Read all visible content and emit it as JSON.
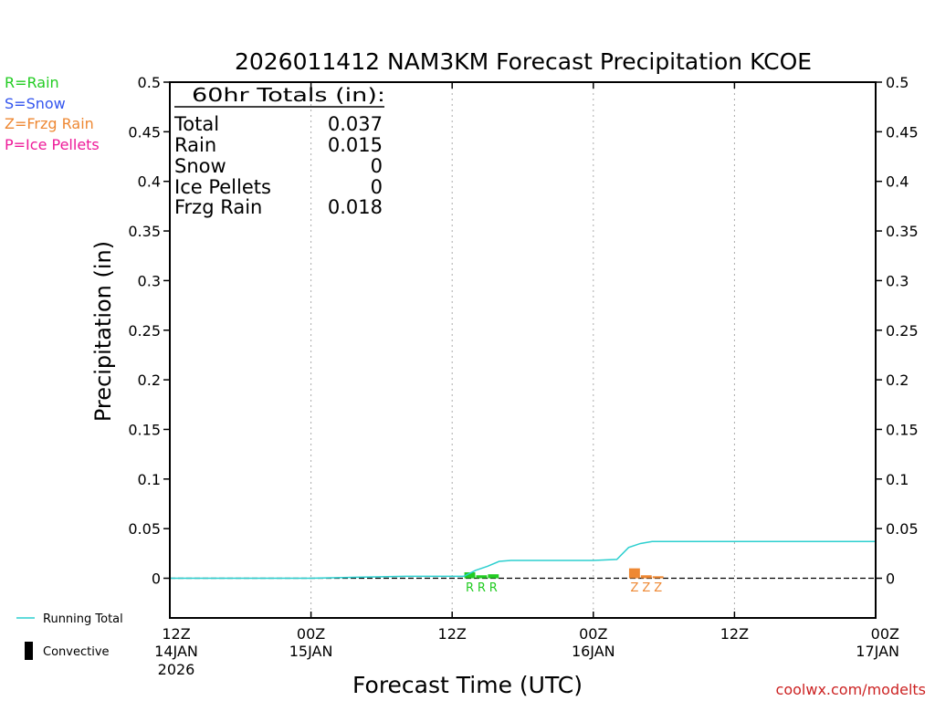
{
  "chart_data": {
    "type": "bar",
    "title": "2026011412 NAM3KM Forecast Precipitation KCOE",
    "xlabel": "Forecast Time (UTC)",
    "ylabel": "Precipitation (in)",
    "ylim": [
      -0.04,
      0.5
    ],
    "xlim_hours": [
      0,
      60
    ],
    "grid_vertical_dashed": true,
    "y_ticks": [
      {
        "value": 0.5,
        "label": "0.5"
      },
      {
        "value": 0.45,
        "label": "0.45"
      },
      {
        "value": 0.4,
        "label": "0.4"
      },
      {
        "value": 0.35,
        "label": "0.35"
      },
      {
        "value": 0.3,
        "label": "0.3"
      },
      {
        "value": 0.25,
        "label": "0.25"
      },
      {
        "value": 0.2,
        "label": "0.2"
      },
      {
        "value": 0.15,
        "label": "0.15"
      },
      {
        "value": 0.1,
        "label": "0.1"
      },
      {
        "value": 0.05,
        "label": "0.05"
      },
      {
        "value": 0,
        "label": "0"
      }
    ],
    "x_ticks": [
      {
        "hour": 0,
        "label": "12Z",
        "date": "14JAN",
        "year": "2026"
      },
      {
        "hour": 12,
        "label": "00Z",
        "date": "15JAN"
      },
      {
        "hour": 24,
        "label": "12Z"
      },
      {
        "hour": 36,
        "label": "00Z",
        "date": "16JAN"
      },
      {
        "hour": 48,
        "label": "12Z"
      },
      {
        "hour": 60,
        "label": "00Z",
        "date": "17JAN"
      }
    ],
    "precip_bars": [
      {
        "hour": 25.5,
        "value": 0.006,
        "ptype": "R"
      },
      {
        "hour": 26.5,
        "value": 0.003,
        "ptype": "R"
      },
      {
        "hour": 27.5,
        "value": 0.004,
        "ptype": "R"
      },
      {
        "hour": 39.5,
        "value": 0.01,
        "ptype": "Z"
      },
      {
        "hour": 40.5,
        "value": 0.003,
        "ptype": "Z"
      },
      {
        "hour": 41.5,
        "value": 0.002,
        "ptype": "Z"
      }
    ],
    "ptype_labels": [
      {
        "hour": 25.5,
        "text": "R",
        "ptype": "R"
      },
      {
        "hour": 26.5,
        "text": "R",
        "ptype": "R"
      },
      {
        "hour": 27.5,
        "text": "R",
        "ptype": "R"
      },
      {
        "hour": 39.5,
        "text": "Z",
        "ptype": "Z"
      },
      {
        "hour": 40.5,
        "text": "Z",
        "ptype": "Z"
      },
      {
        "hour": 41.5,
        "text": "Z",
        "ptype": "Z"
      }
    ],
    "running_total": {
      "hours": [
        0,
        12,
        16,
        20,
        25,
        26,
        27,
        28,
        29,
        30,
        36,
        38,
        39,
        40,
        41,
        42,
        50,
        60
      ],
      "values": [
        0,
        0,
        0.001,
        0.002,
        0.002,
        0.008,
        0.012,
        0.017,
        0.018,
        0.018,
        0.018,
        0.019,
        0.031,
        0.035,
        0.037,
        0.037,
        0.037,
        0.037
      ]
    },
    "totals_box": {
      "header": "60hr Totals (in):",
      "rows": [
        {
          "label": "Total",
          "value": "0.037"
        },
        {
          "label": "Rain",
          "value": "0.015"
        },
        {
          "label": "Snow",
          "value": "0"
        },
        {
          "label": "Ice Pellets",
          "value": "0"
        },
        {
          "label": "Frzg Rain",
          "value": "0.018"
        }
      ]
    },
    "ptype_legend": [
      {
        "text": "R=Rain",
        "color": "#22cc22"
      },
      {
        "text": "S=Snow",
        "color": "#3355ee"
      },
      {
        "text": "Z=Frzg Rain",
        "color": "#ee8833"
      },
      {
        "text": "P=Ice Pellets",
        "color": "#ee1a99"
      }
    ],
    "line_legend": {
      "running_total": "Running Total",
      "convective": "Convective"
    },
    "colors": {
      "R": "#22cc22",
      "Z": "#ee8833",
      "running_total": "#2ccfcf",
      "watermark": "#cc2222"
    },
    "watermark": "coolwx.com/modelts"
  }
}
